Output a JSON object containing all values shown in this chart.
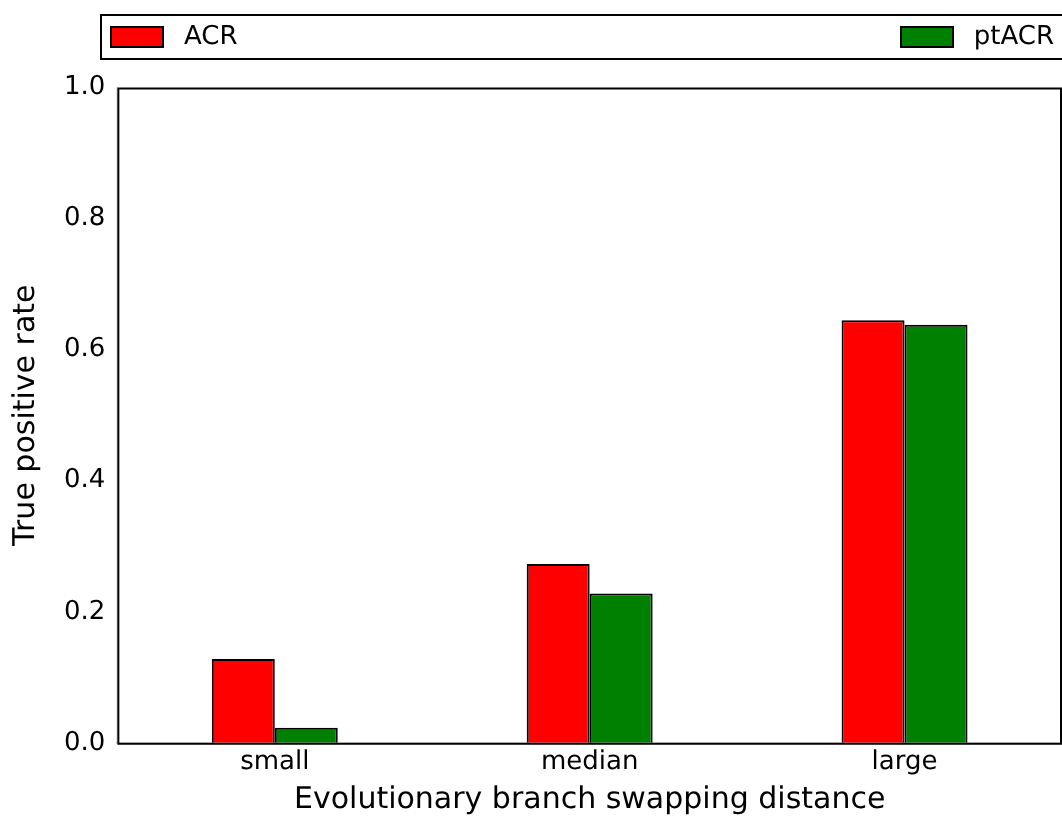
{
  "chart_data": {
    "type": "bar",
    "xlabel": "Evolutionary branch swapping distance",
    "ylabel": "True positive rate",
    "categories": [
      "small",
      "median",
      "large"
    ],
    "series": [
      {
        "name": "ACR",
        "color": "#ff0000",
        "values": [
          0.128,
          0.273,
          0.645
        ]
      },
      {
        "name": "ptACR",
        "color": "#008000",
        "values": [
          0.023,
          0.228,
          0.638
        ]
      }
    ],
    "ylim": [
      0,
      1
    ],
    "yticks": [
      {
        "value": 0,
        "label": "0.0"
      },
      {
        "value": 0.2,
        "label": "0.2"
      },
      {
        "value": 0.4,
        "label": "0.4"
      },
      {
        "value": 0.6,
        "label": "0.6"
      },
      {
        "value": 0.8,
        "label": "0.8"
      },
      {
        "value": 1,
        "label": "1.0"
      }
    ],
    "grid": false,
    "legend": "top"
  }
}
